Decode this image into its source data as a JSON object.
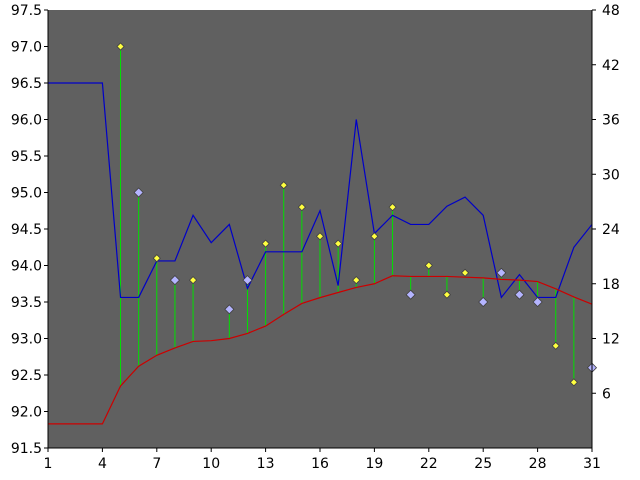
{
  "chart_data": {
    "type": "line",
    "x": [
      1,
      2,
      3,
      4,
      5,
      6,
      7,
      8,
      9,
      10,
      11,
      12,
      13,
      14,
      15,
      16,
      17,
      18,
      19,
      20,
      21,
      22,
      23,
      24,
      25,
      26,
      27,
      28,
      29,
      30,
      31
    ],
    "xticks": [
      1,
      4,
      7,
      10,
      13,
      16,
      19,
      22,
      25,
      28,
      31
    ],
    "xlim": [
      1,
      31
    ],
    "ylim_left": [
      91.5,
      97.5
    ],
    "yticks_left": [
      91.5,
      92.0,
      92.5,
      93.0,
      93.5,
      94.0,
      94.5,
      95.0,
      95.5,
      96.0,
      96.5,
      97.0,
      97.5
    ],
    "ylim_right": [
      0,
      48
    ],
    "yticks_right": [
      6,
      12,
      18,
      24,
      30,
      36,
      42,
      48
    ],
    "grid": false,
    "plot_background": "#606060",
    "series": [
      {
        "axis": "right",
        "color": "#0000c8",
        "style": "line",
        "values": [
          40,
          40,
          40,
          40,
          16.5,
          16.5,
          20.5,
          20.5,
          25.5,
          22.5,
          24.5,
          17.5,
          21.5,
          21.5,
          21.5,
          26,
          17.8,
          36,
          23.5,
          25.5,
          24.5,
          24.5,
          26.5,
          27.5,
          25.5,
          16.5,
          19,
          16.5,
          16.5,
          22,
          24.5
        ]
      },
      {
        "axis": "left",
        "color": "#cc0000",
        "style": "line",
        "values": [
          91.83,
          91.83,
          91.83,
          91.83,
          92.35,
          92.62,
          92.77,
          92.87,
          92.96,
          92.97,
          93.0,
          93.07,
          93.17,
          93.33,
          93.48,
          93.56,
          93.63,
          93.7,
          93.75,
          93.86,
          93.85,
          93.85,
          93.85,
          93.84,
          93.83,
          93.81,
          93.8,
          93.78,
          93.68,
          93.57,
          93.47
        ]
      },
      {
        "axis": "left",
        "style": "markers",
        "x": [
          5,
          6,
          7,
          8,
          9,
          11,
          12,
          13,
          14,
          15,
          16,
          17,
          18,
          19,
          20,
          21,
          22,
          23,
          24,
          25,
          26,
          27,
          28,
          29,
          30,
          31
        ],
        "values": [
          97.0,
          95.0,
          94.1,
          93.8,
          93.8,
          93.4,
          93.8,
          94.3,
          95.1,
          94.8,
          94.4,
          94.3,
          93.8,
          94.4,
          94.8,
          93.6,
          94.0,
          93.6,
          93.9,
          93.5,
          93.9,
          93.6,
          93.5,
          92.9,
          92.4,
          92.6
        ],
        "marker_colors": [
          "yellow",
          "blue",
          "yellow",
          "blue",
          "yellow",
          "blue",
          "blue",
          "yellow",
          "yellow",
          "yellow",
          "yellow",
          "yellow",
          "yellow",
          "yellow",
          "yellow",
          "blue",
          "yellow",
          "yellow",
          "yellow",
          "blue",
          "blue",
          "blue",
          "blue",
          "yellow",
          "yellow",
          "blue"
        ]
      }
    ],
    "colors": {
      "stem": "#00e000",
      "marker_yellow": "#ffff40",
      "marker_blue": "#b4b4ff",
      "marker_edge": "#404040"
    }
  }
}
